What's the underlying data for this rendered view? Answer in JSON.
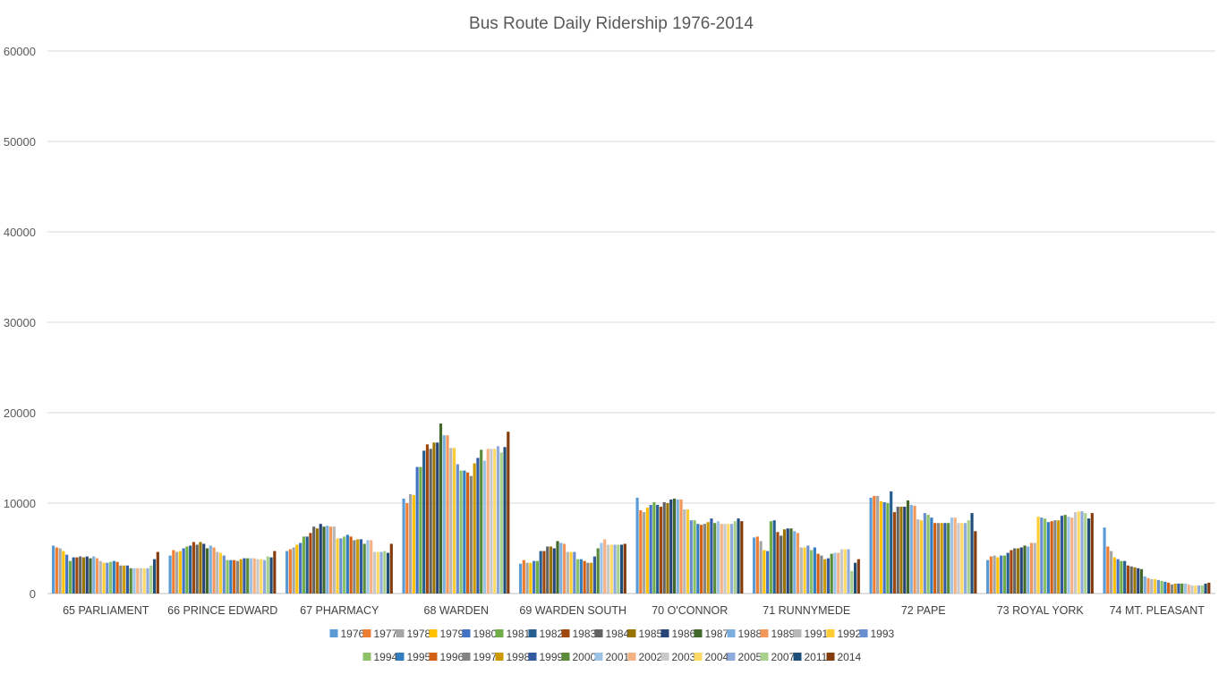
{
  "chart_data": {
    "type": "bar",
    "title": "Bus Route Daily Ridership 1976-2014",
    "xlabel": "",
    "ylabel": "",
    "ylim": [
      0,
      60000
    ],
    "yticks": [
      0,
      10000,
      20000,
      30000,
      40000,
      50000,
      60000
    ],
    "grid": true,
    "legend_position": "bottom",
    "categories": [
      "65 PARLIAMENT",
      "66 PRINCE EDWARD",
      "67 PHARMACY",
      "68 WARDEN",
      "69 WARDEN SOUTH",
      "70 O'CONNOR",
      "71 RUNNYMEDE",
      "72 PAPE",
      "73 ROYAL YORK",
      "74 MT. PLEASANT"
    ],
    "series": [
      {
        "name": "1976",
        "color": "#5B9BD5",
        "values": [
          5300,
          4200,
          4700,
          10500,
          3300,
          10600,
          6200,
          10600,
          3700,
          7300
        ]
      },
      {
        "name": "1977",
        "color": "#ED7D31",
        "values": [
          5100,
          4800,
          4900,
          10000,
          3700,
          9200,
          6300,
          10800,
          4100,
          5200
        ]
      },
      {
        "name": "1978",
        "color": "#A5A5A5",
        "values": [
          5000,
          4600,
          5100,
          11000,
          3400,
          9000,
          5800,
          10800,
          4200,
          4700
        ]
      },
      {
        "name": "1979",
        "color": "#FFC000",
        "values": [
          4700,
          4700,
          5400,
          10900,
          3400,
          9500,
          4800,
          10200,
          4000,
          4000
        ]
      },
      {
        "name": "1980",
        "color": "#4472C4",
        "values": [
          4300,
          5000,
          5600,
          14000,
          3600,
          9800,
          4700,
          10100,
          4200,
          3800
        ]
      },
      {
        "name": "1981",
        "color": "#70AD47",
        "values": [
          3600,
          5200,
          6300,
          14000,
          3600,
          10100,
          8000,
          10000,
          4200,
          3600
        ]
      },
      {
        "name": "1982",
        "color": "#255E91",
        "values": [
          4000,
          5300,
          6300,
          15800,
          4700,
          9800,
          8100,
          11300,
          4500,
          3600
        ]
      },
      {
        "name": "1983",
        "color": "#9E480E",
        "values": [
          4000,
          5700,
          6700,
          16500,
          4700,
          9600,
          6800,
          9000,
          4800,
          3100
        ]
      },
      {
        "name": "1984",
        "color": "#636363",
        "values": [
          4100,
          5400,
          7400,
          16000,
          5200,
          10100,
          6400,
          9600,
          5000,
          3000
        ]
      },
      {
        "name": "1985",
        "color": "#997300",
        "values": [
          4000,
          5700,
          7200,
          16700,
          5200,
          10000,
          7100,
          9600,
          5000,
          2900
        ]
      },
      {
        "name": "1986",
        "color": "#264478",
        "values": [
          4100,
          5500,
          7700,
          16700,
          5000,
          10400,
          7200,
          9600,
          5100,
          2800
        ]
      },
      {
        "name": "1987",
        "color": "#43682B",
        "values": [
          3900,
          5000,
          7400,
          18800,
          5800,
          10500,
          7200,
          10300,
          5300,
          2700
        ]
      },
      {
        "name": "1988",
        "color": "#7CAFDD",
        "values": [
          4100,
          5300,
          7500,
          17500,
          5600,
          10400,
          6900,
          9800,
          5200,
          1900
        ]
      },
      {
        "name": "1989",
        "color": "#F1975A",
        "values": [
          3900,
          5100,
          7400,
          17500,
          5500,
          10400,
          6700,
          9700,
          5600,
          1700
        ]
      },
      {
        "name": "1991",
        "color": "#B7B7B7",
        "values": [
          3600,
          4600,
          7400,
          16100,
          4600,
          9300,
          5100,
          8200,
          5600,
          1600
        ]
      },
      {
        "name": "1992",
        "color": "#FFCD33",
        "values": [
          3400,
          4500,
          6100,
          16100,
          4600,
          9300,
          5100,
          8100,
          8500,
          1600
        ]
      },
      {
        "name": "1993",
        "color": "#698ED0",
        "values": [
          3400,
          4200,
          6100,
          14300,
          4600,
          8100,
          5300,
          8900,
          8400,
          1500
        ]
      },
      {
        "name": "1994",
        "color": "#8CC168",
        "values": [
          3500,
          3700,
          6300,
          13600,
          3800,
          8100,
          4800,
          8700,
          8300,
          1400
        ]
      },
      {
        "name": "1995",
        "color": "#327DC2",
        "values": [
          3600,
          3700,
          6500,
          13600,
          3800,
          7700,
          5100,
          8400,
          7900,
          1300
        ]
      },
      {
        "name": "1996",
        "color": "#D26012",
        "values": [
          3500,
          3700,
          6300,
          13400,
          3600,
          7600,
          4400,
          7800,
          8000,
          1200
        ]
      },
      {
        "name": "1997",
        "color": "#848484",
        "values": [
          3100,
          3600,
          5900,
          13000,
          3400,
          7700,
          4200,
          7800,
          8100,
          1000
        ]
      },
      {
        "name": "1998",
        "color": "#CC9A00",
        "values": [
          3100,
          3800,
          6000,
          14400,
          3400,
          7900,
          3800,
          7800,
          8100,
          1100
        ]
      },
      {
        "name": "1999",
        "color": "#335AA1",
        "values": [
          3100,
          3900,
          6000,
          15000,
          4100,
          8300,
          3900,
          7800,
          8600,
          1100
        ]
      },
      {
        "name": "2000",
        "color": "#5A8B39",
        "values": [
          2800,
          3900,
          5500,
          15900,
          5000,
          7800,
          4400,
          7800,
          8700,
          1100
        ]
      },
      {
        "name": "2001",
        "color": "#9DC3E6",
        "values": [
          2800,
          3900,
          5900,
          14700,
          5600,
          8000,
          4500,
          8400,
          8500,
          1100
        ]
      },
      {
        "name": "2002",
        "color": "#F4B183",
        "values": [
          2800,
          3900,
          5900,
          16000,
          6000,
          7700,
          4500,
          8400,
          8400,
          1000
        ]
      },
      {
        "name": "2003",
        "color": "#C9C9C9",
        "values": [
          2800,
          3800,
          4600,
          16000,
          5400,
          7700,
          4900,
          7800,
          9000,
          900
        ]
      },
      {
        "name": "2004",
        "color": "#FFD966",
        "values": [
          2800,
          3800,
          4600,
          16000,
          5400,
          7700,
          4900,
          7800,
          9100,
          900
        ]
      },
      {
        "name": "2005",
        "color": "#8FAADC",
        "values": [
          2800,
          3700,
          4600,
          16300,
          5400,
          7700,
          4900,
          7800,
          9100,
          900
        ]
      },
      {
        "name": "2007",
        "color": "#A9D18E",
        "values": [
          3100,
          4100,
          4700,
          15600,
          5400,
          8000,
          2500,
          8100,
          8900,
          900
        ]
      },
      {
        "name": "2011",
        "color": "#1F4E79",
        "values": [
          3800,
          4000,
          4500,
          16200,
          5400,
          8300,
          3400,
          8900,
          8300,
          1100
        ]
      },
      {
        "name": "2014",
        "color": "#843C0C",
        "values": [
          4600,
          4700,
          5500,
          17900,
          5500,
          8000,
          3800,
          6900,
          8900,
          1200
        ]
      }
    ]
  }
}
